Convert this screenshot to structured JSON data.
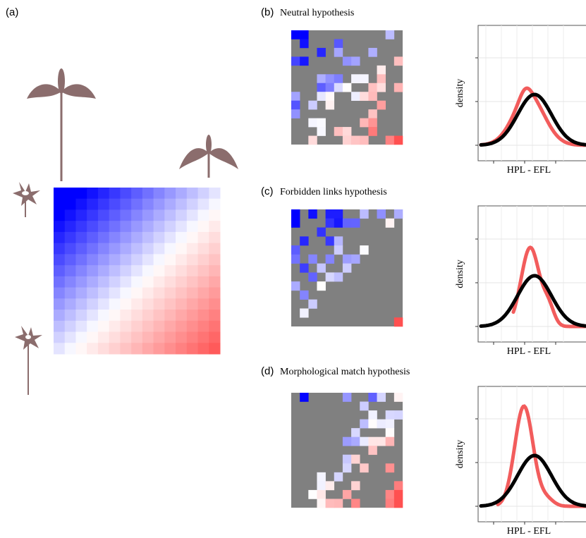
{
  "panels": [
    {
      "label": "(a)"
    },
    {
      "label": "(b)",
      "title": "Neutral hypothesis",
      "y_label": "density",
      "x_label": "HPL - EFL"
    },
    {
      "label": "(c)",
      "title": "Forbidden links hypothesis",
      "y_label": "density",
      "x_label": "HPL - EFL"
    },
    {
      "label": "(d)",
      "title": "Morphological match hypothesis",
      "y_label": "density",
      "x_label": "HPL - EFL"
    }
  ]
}
